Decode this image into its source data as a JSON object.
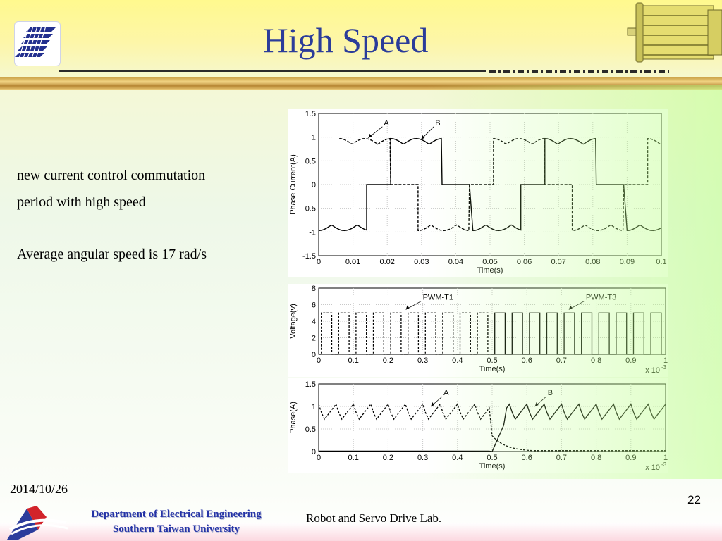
{
  "slide": {
    "title": "High Speed",
    "body": [
      "new current control commutation",
      "period with high speed",
      "Average angular speed is 17 rad/s"
    ],
    "date": "2014/10/26",
    "page_number": "22",
    "footer_dept": [
      "Department of Electrical Engineering",
      "Southern Taiwan University"
    ],
    "footer_lab": "Robot and Servo Drive Lab.",
    "colors": {
      "title": "#2b3c9a",
      "dept": "#2433a6"
    }
  },
  "chart_data": [
    {
      "type": "line",
      "xlabel": "Time(s)",
      "ylabel": "Phase Current(A)",
      "xlim": [
        0,
        0.1
      ],
      "ylim": [
        -1.5,
        1.5
      ],
      "xticks": [
        "0",
        "0.01",
        "0.02",
        "0.03",
        "0.04",
        "0.05",
        "0.06",
        "0.07",
        "0.08",
        "0.09",
        "0.1"
      ],
      "yticks": [
        "1.5",
        "1",
        "0.5",
        "0",
        "-0.5",
        "-1",
        "-1.5"
      ],
      "grid": true,
      "period": 0.045,
      "series": [
        {
          "name": "A",
          "style": "dashed",
          "segments": [
            [
              0.006,
              0.021,
              1
            ],
            [
              0.021,
              0.029,
              0
            ],
            [
              0.029,
              0.044,
              -1
            ],
            [
              0.044,
              0.051,
              0
            ]
          ]
        },
        {
          "name": "B",
          "style": "solid",
          "segments": [
            [
              0.0,
              0.014,
              -1
            ],
            [
              0.014,
              0.021,
              0
            ],
            [
              0.021,
              0.036,
              1
            ],
            [
              0.036,
              0.044,
              0
            ]
          ]
        }
      ],
      "annotations": [
        {
          "text": "A",
          "x": 0.019,
          "y": 1.25
        },
        {
          "text": "B",
          "x": 0.034,
          "y": 1.25
        }
      ]
    },
    {
      "type": "line",
      "xlabel": "Time(s)",
      "ylabel": "Voltage(v)",
      "xlim": [
        0,
        0.001
      ],
      "ylim": [
        0,
        8
      ],
      "xticks": [
        "0",
        "0.1",
        "0.2",
        "0.3",
        "0.4",
        "0.5",
        "0.6",
        "0.7",
        "0.8",
        "0.9",
        "1"
      ],
      "yticks": [
        "8",
        "6",
        "4",
        "2",
        "0"
      ],
      "x_multiplier": "x 10",
      "x_exponent": "-3",
      "grid": true,
      "pwm_period": 5e-05,
      "series": [
        {
          "name": "PWM-T1",
          "style": "dashed",
          "high_value": 5,
          "range": [
            0,
            0.0005
          ]
        },
        {
          "name": "PWM-T3",
          "style": "solid",
          "high_value": 5,
          "range": [
            0.0005,
            0.001
          ]
        }
      ],
      "annotations": [
        {
          "text": "PWM-T1",
          "x": 0.0003,
          "y": 6.6
        },
        {
          "text": "PWM-T3",
          "x": 0.00077,
          "y": 6.6
        }
      ]
    },
    {
      "type": "line",
      "xlabel": "Time(s)",
      "ylabel": "Phase(A)",
      "xlim": [
        0,
        0.001
      ],
      "ylim": [
        0,
        1.5
      ],
      "xticks": [
        "0",
        "0.1",
        "0.2",
        "0.3",
        "0.4",
        "0.5",
        "0.6",
        "0.7",
        "0.8",
        "0.9",
        "1"
      ],
      "yticks": [
        "1.5",
        "1",
        "0.5",
        "0"
      ],
      "x_multiplier": "x 10",
      "x_exponent": "-3",
      "grid": true,
      "ripple_period": 5e-05,
      "ripple_range": [
        0.7,
        1.05
      ],
      "series": [
        {
          "name": "A",
          "style": "dashed",
          "active_range": [
            0,
            0.0005
          ],
          "transition": 0.0005
        },
        {
          "name": "B",
          "style": "solid",
          "active_range": [
            0.0005,
            0.001
          ],
          "transition": 0.0005
        }
      ],
      "annotations": [
        {
          "text": "A",
          "x": 0.00036,
          "y": 1.25
        },
        {
          "text": "B",
          "x": 0.00066,
          "y": 1.25
        }
      ]
    }
  ]
}
